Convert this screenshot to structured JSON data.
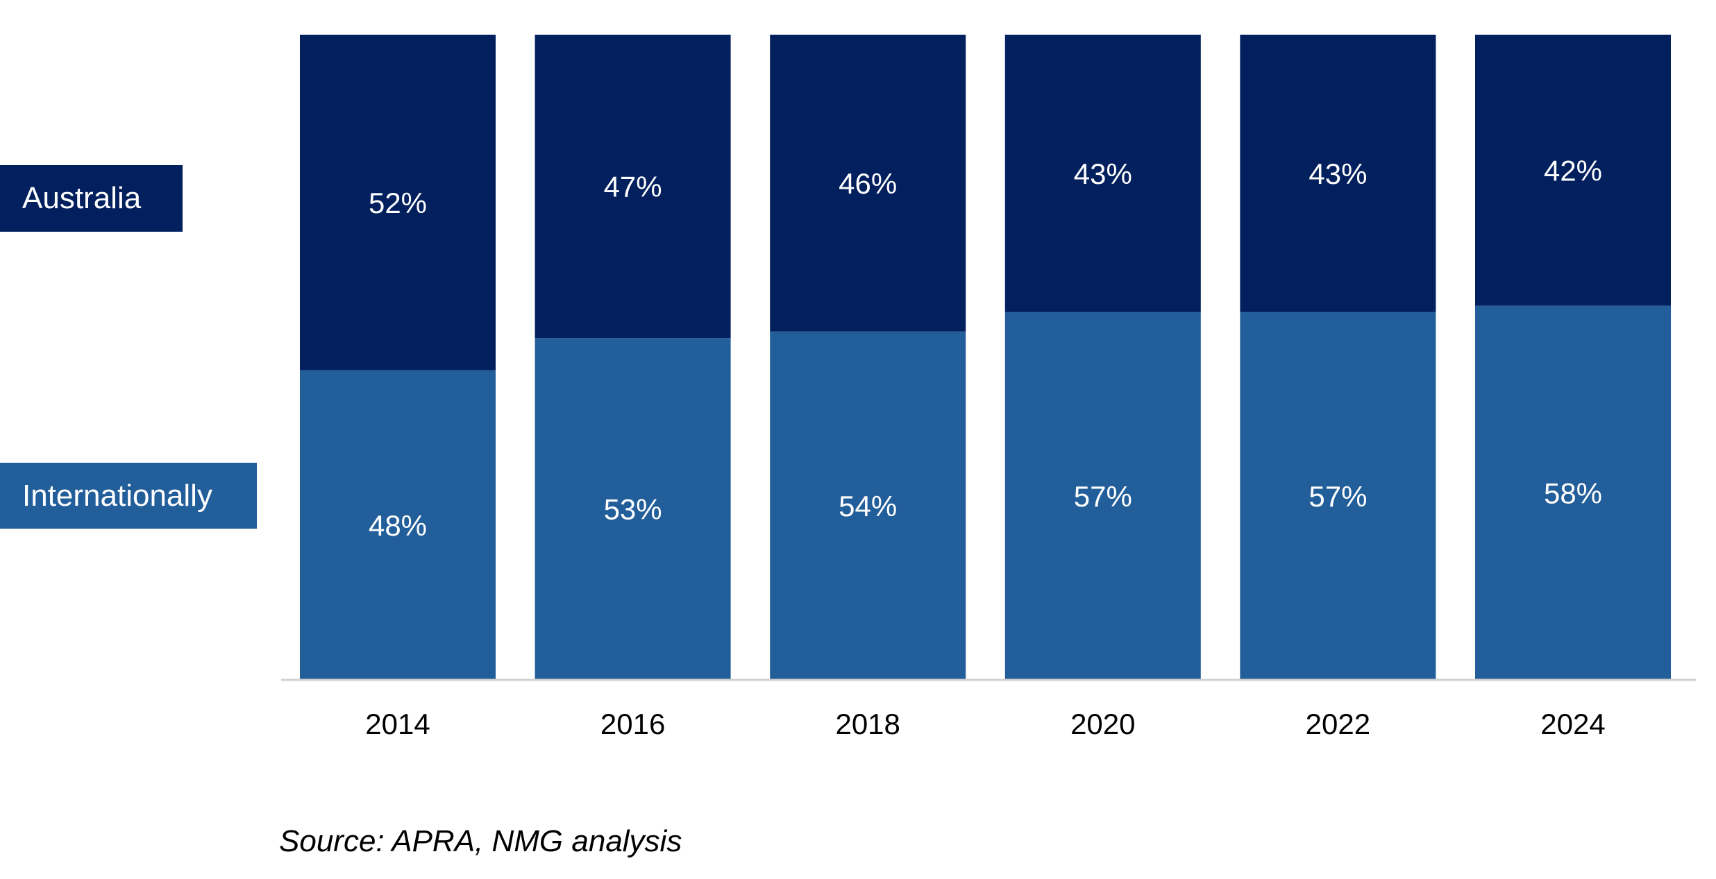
{
  "chart_data": {
    "type": "bar",
    "stacked": true,
    "normalized": true,
    "categories": [
      "2014",
      "2016",
      "2018",
      "2020",
      "2022",
      "2024"
    ],
    "series": [
      {
        "name": "Internationally",
        "values": [
          48,
          53,
          54,
          57,
          57,
          58
        ],
        "labels": [
          "48%",
          "53%",
          "54%",
          "57%",
          "57%",
          "58%"
        ],
        "color": "#225e9a"
      },
      {
        "name": "Australia",
        "values": [
          52,
          47,
          46,
          43,
          43,
          42
        ],
        "labels": [
          "52%",
          "47%",
          "46%",
          "43%",
          "43%",
          "42%"
        ],
        "color": "#021f5e"
      }
    ],
    "ylim": [
      0,
      100
    ],
    "grid": false,
    "legend": "left",
    "source": "Source: APRA, NMG analysis"
  }
}
